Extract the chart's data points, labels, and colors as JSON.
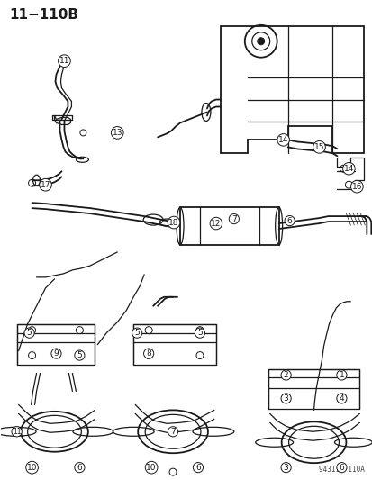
{
  "title": "11−110B",
  "bg_color": "#ffffff",
  "line_color": "#1a1a1a",
  "watermark": "94311  110A",
  "title_fontsize": 11,
  "figsize": [
    4.14,
    5.33
  ],
  "dpi": 100
}
